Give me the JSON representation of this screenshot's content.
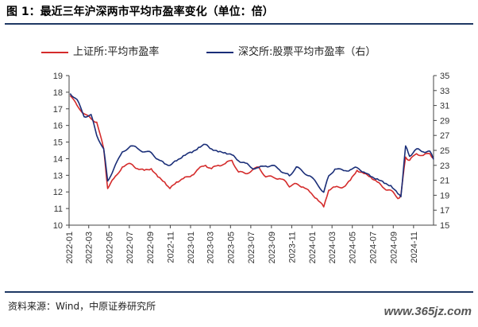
{
  "title": "图 1：最近三年沪深两市平均市盈率变化（单位：倍）",
  "source": "资料来源：Wind，中原证券研究所",
  "watermark": "www.365jz.com",
  "chart_data": {
    "type": "line",
    "x_ticks": [
      "2022-01",
      "2022-03",
      "2022-05",
      "2022-07",
      "2022-09",
      "2022-11",
      "2023-01",
      "2023-03",
      "2023-05",
      "2023-07",
      "2023-09",
      "2023-11",
      "2024-01",
      "2024-03",
      "2024-05",
      "2024-07",
      "2024-09",
      "2024-11"
    ],
    "ylim_left": [
      10,
      19
    ],
    "yticks_left": [
      "10",
      "11",
      "12",
      "13",
      "14",
      "15",
      "16",
      "17",
      "18",
      "19"
    ],
    "ylim_right": [
      15,
      35
    ],
    "yticks_right": [
      "15",
      "17",
      "19",
      "21",
      "23",
      "25",
      "27",
      "29",
      "31",
      "33",
      "35"
    ],
    "series": [
      {
        "name": "上证所:平均市盈率",
        "color": "#d42b2b",
        "axis": "left",
        "x": [
          "2022-01-04",
          "2022-01-25",
          "2022-02-15",
          "2022-03-08",
          "2022-03-25",
          "2022-04-15",
          "2022-04-27",
          "2022-05-15",
          "2022-06-10",
          "2022-07-05",
          "2022-07-25",
          "2022-08-15",
          "2022-09-05",
          "2022-09-25",
          "2022-10-15",
          "2022-10-31",
          "2022-11-20",
          "2022-12-10",
          "2023-01-05",
          "2023-01-25",
          "2023-02-15",
          "2023-03-05",
          "2023-03-25",
          "2023-04-15",
          "2023-05-05",
          "2023-05-25",
          "2023-06-15",
          "2023-07-05",
          "2023-07-25",
          "2023-08-15",
          "2023-09-05",
          "2023-09-25",
          "2023-10-15",
          "2023-10-25",
          "2023-11-15",
          "2023-12-05",
          "2023-12-25",
          "2024-01-15",
          "2024-02-05",
          "2024-02-20",
          "2024-03-10",
          "2024-04-05",
          "2024-04-25",
          "2024-05-15",
          "2024-06-05",
          "2024-06-25",
          "2024-07-15",
          "2024-08-05",
          "2024-08-25",
          "2024-09-15",
          "2024-09-24",
          "2024-10-08",
          "2024-10-20",
          "2024-11-10",
          "2024-11-30",
          "2024-12-20",
          "2024-12-31"
        ],
        "y": [
          17.8,
          17.2,
          16.7,
          16.4,
          16.2,
          14.6,
          12.2,
          12.8,
          13.5,
          13.7,
          13.4,
          13.3,
          13.4,
          12.9,
          12.6,
          12.2,
          12.6,
          12.8,
          13.0,
          13.4,
          13.6,
          13.4,
          13.6,
          13.7,
          13.9,
          13.2,
          13.1,
          13.3,
          13.5,
          12.9,
          12.9,
          12.8,
          12.6,
          12.3,
          12.5,
          12.3,
          12.0,
          11.6,
          11.1,
          12.1,
          12.3,
          12.3,
          12.7,
          13.3,
          13.1,
          12.9,
          12.6,
          12.2,
          12.1,
          11.6,
          11.8,
          14.1,
          13.9,
          14.3,
          14.2,
          14.3,
          14.0
        ]
      },
      {
        "name": "深交所:股票平均市盈率（右）",
        "color": "#1a2e78",
        "axis": "right",
        "x": [
          "2022-01-04",
          "2022-01-25",
          "2022-02-15",
          "2022-03-08",
          "2022-03-25",
          "2022-04-15",
          "2022-04-27",
          "2022-05-15",
          "2022-06-10",
          "2022-07-05",
          "2022-07-25",
          "2022-08-15",
          "2022-09-05",
          "2022-09-25",
          "2022-10-15",
          "2022-10-31",
          "2022-11-20",
          "2022-12-10",
          "2023-01-05",
          "2023-01-25",
          "2023-02-15",
          "2023-03-05",
          "2023-03-25",
          "2023-04-15",
          "2023-05-05",
          "2023-05-25",
          "2023-06-15",
          "2023-07-05",
          "2023-07-25",
          "2023-08-15",
          "2023-09-05",
          "2023-09-25",
          "2023-10-15",
          "2023-10-25",
          "2023-11-15",
          "2023-12-05",
          "2023-12-25",
          "2024-01-15",
          "2024-02-05",
          "2024-02-20",
          "2024-03-10",
          "2024-04-05",
          "2024-04-25",
          "2024-05-15",
          "2024-06-05",
          "2024-06-25",
          "2024-07-15",
          "2024-08-05",
          "2024-08-25",
          "2024-09-15",
          "2024-09-24",
          "2024-10-08",
          "2024-10-20",
          "2024-11-10",
          "2024-11-30",
          "2024-12-20",
          "2024-12-31"
        ],
        "y": [
          32.6,
          31.8,
          29.5,
          29.8,
          27.0,
          25.2,
          20.9,
          22.5,
          24.8,
          25.6,
          25.3,
          24.8,
          24.7,
          23.8,
          23.2,
          23.0,
          23.6,
          24.3,
          24.7,
          25.4,
          25.8,
          25.2,
          24.8,
          24.7,
          24.4,
          23.6,
          23.3,
          22.6,
          22.7,
          22.9,
          23.0,
          22.4,
          21.9,
          21.6,
          22.8,
          22.1,
          21.6,
          20.6,
          19.4,
          21.6,
          22.5,
          22.3,
          22.4,
          22.7,
          22.1,
          21.5,
          21.2,
          20.6,
          20.3,
          19.2,
          18.8,
          25.6,
          24.2,
          25.2,
          24.8,
          24.9,
          23.8
        ]
      }
    ]
  }
}
